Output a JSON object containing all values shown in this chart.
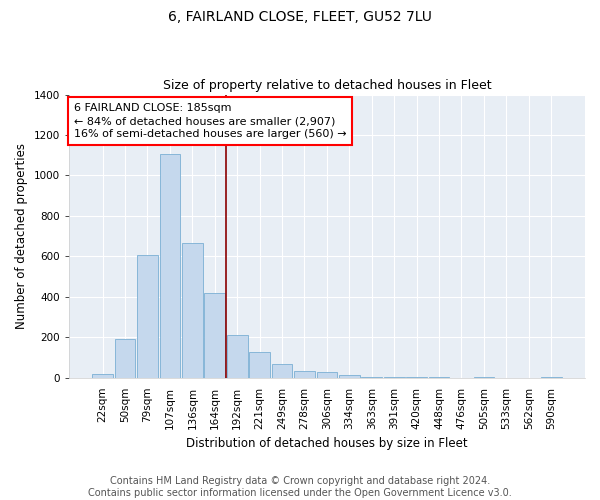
{
  "title": "6, FAIRLAND CLOSE, FLEET, GU52 7LU",
  "subtitle": "Size of property relative to detached houses in Fleet",
  "xlabel": "Distribution of detached houses by size in Fleet",
  "ylabel": "Number of detached properties",
  "categories": [
    "22sqm",
    "50sqm",
    "79sqm",
    "107sqm",
    "136sqm",
    "164sqm",
    "192sqm",
    "221sqm",
    "249sqm",
    "278sqm",
    "306sqm",
    "334sqm",
    "363sqm",
    "391sqm",
    "420sqm",
    "448sqm",
    "476sqm",
    "505sqm",
    "533sqm",
    "562sqm",
    "590sqm"
  ],
  "values": [
    15,
    190,
    607,
    1107,
    665,
    420,
    210,
    128,
    68,
    30,
    25,
    10,
    5,
    5,
    3,
    2,
    0,
    2,
    0,
    0,
    5
  ],
  "bar_color": "#c5d8ed",
  "bar_edge_color": "#7aafd4",
  "vline_color": "#8b0000",
  "annotation_line1": "6 FAIRLAND CLOSE: 185sqm",
  "annotation_line2": "← 84% of detached houses are smaller (2,907)",
  "annotation_line3": "16% of semi-detached houses are larger (560) →",
  "annotation_box_color": "white",
  "annotation_box_edge": "red",
  "ylim": [
    0,
    1400
  ],
  "yticks": [
    0,
    200,
    400,
    600,
    800,
    1000,
    1200,
    1400
  ],
  "background_color": "#e8eef5",
  "footer_line1": "Contains HM Land Registry data © Crown copyright and database right 2024.",
  "footer_line2": "Contains public sector information licensed under the Open Government Licence v3.0.",
  "title_fontsize": 10,
  "subtitle_fontsize": 9,
  "axis_label_fontsize": 8.5,
  "tick_fontsize": 7.5,
  "annotation_fontsize": 8,
  "footer_fontsize": 7
}
